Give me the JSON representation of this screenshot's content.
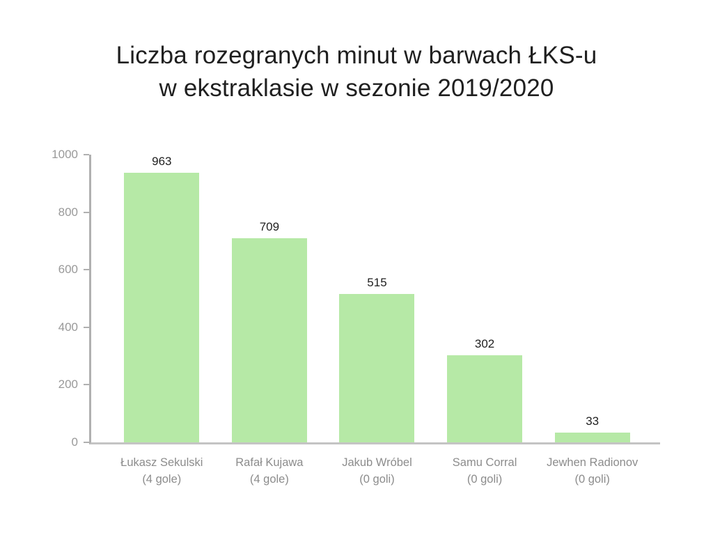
{
  "title": {
    "line1": "Liczba rozegranych minut w barwach ŁKS-u",
    "line2": "w ekstraklasie w sezonie 2019/2020"
  },
  "chart_data": {
    "type": "bar",
    "title": "Liczba rozegranych minut w barwach ŁKS-u w ekstraklasie w sezonie 2019/2020",
    "categories": [
      "Łukasz Sekulski",
      "Rafał Kujawa",
      "Jakub Wróbel",
      "Samu Corral",
      "Jewhen Radionov"
    ],
    "category_sublabels": [
      "(4 gole)",
      "(4 gole)",
      "(0 goli)",
      "(0 goli)",
      "(0 goli)"
    ],
    "values": [
      963,
      709,
      515,
      302,
      33
    ],
    "xlabel": "",
    "ylabel": "",
    "ylim": [
      0,
      1000
    ],
    "yticks": [
      0,
      200,
      400,
      600,
      800,
      1000
    ],
    "grid": false,
    "legend_position": "none",
    "colors": {
      "bar": "#b6e9a6",
      "value_label": "#1f1f1f",
      "tick_label": "#999999",
      "category_label": "#8c8c8c",
      "axis_line": "#b0b0b0",
      "baseline": "#c4c4c4",
      "title": "#1f1f1f",
      "background": "#ffffff"
    }
  }
}
